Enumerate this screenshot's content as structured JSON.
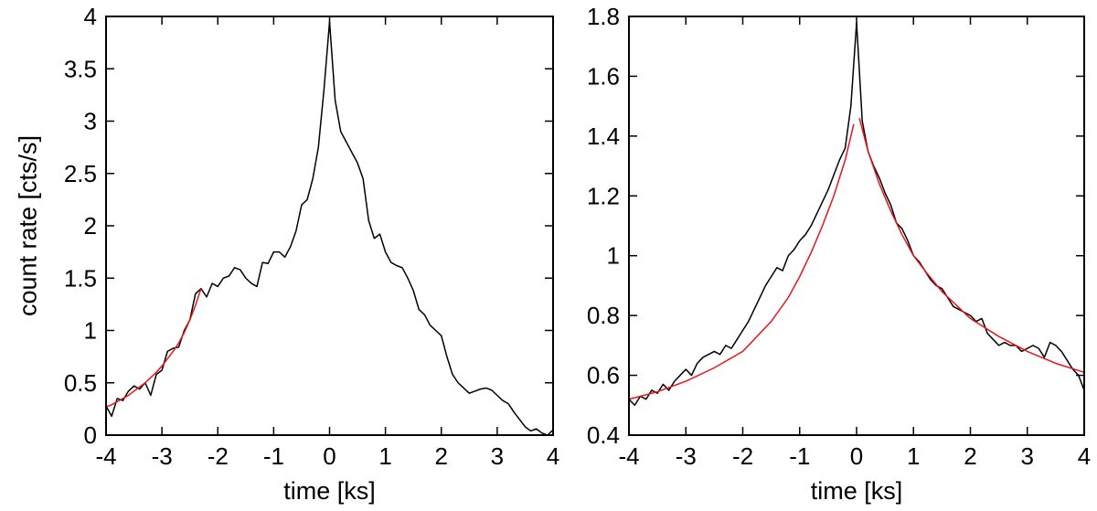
{
  "colors": {
    "data": "#000000",
    "fit": "#e8151b"
  },
  "chart_data": [
    {
      "type": "line",
      "xlabel": "time [ks]",
      "ylabel": "count rate [cts/s]",
      "xlim": [
        -4,
        4
      ],
      "ylim": [
        0,
        4
      ],
      "xticks": [
        "-4",
        "-3",
        "-2",
        "-1",
        "0",
        "1",
        "2",
        "3",
        "4"
      ],
      "yticks": [
        "0",
        "0.5",
        "1",
        "1.5",
        "2",
        "2.5",
        "3",
        "3.5",
        "4"
      ],
      "grid": false,
      "series": [
        {
          "role": "data",
          "x": [
            -4.0,
            -3.9,
            -3.8,
            -3.7,
            -3.6,
            -3.5,
            -3.4,
            -3.3,
            -3.2,
            -3.1,
            -3.0,
            -2.9,
            -2.8,
            -2.7,
            -2.6,
            -2.5,
            -2.4,
            -2.3,
            -2.2,
            -2.1,
            -2.0,
            -1.9,
            -1.8,
            -1.7,
            -1.6,
            -1.5,
            -1.4,
            -1.3,
            -1.2,
            -1.1,
            -1.0,
            -0.9,
            -0.8,
            -0.7,
            -0.6,
            -0.5,
            -0.4,
            -0.3,
            -0.2,
            -0.1,
            0.0,
            0.1,
            0.2,
            0.3,
            0.4,
            0.5,
            0.6,
            0.7,
            0.8,
            0.9,
            1.0,
            1.1,
            1.2,
            1.3,
            1.4,
            1.5,
            1.6,
            1.7,
            1.8,
            1.9,
            2.0,
            2.1,
            2.2,
            2.3,
            2.4,
            2.5,
            2.6,
            2.7,
            2.8,
            2.9,
            3.0,
            3.1,
            3.2,
            3.3,
            3.4,
            3.5,
            3.6,
            3.7,
            3.8,
            3.9,
            4.0
          ],
          "y": [
            0.28,
            0.18,
            0.35,
            0.33,
            0.42,
            0.47,
            0.44,
            0.5,
            0.38,
            0.58,
            0.62,
            0.8,
            0.83,
            0.84,
            1.0,
            1.1,
            1.35,
            1.4,
            1.32,
            1.45,
            1.42,
            1.5,
            1.52,
            1.6,
            1.58,
            1.5,
            1.45,
            1.42,
            1.65,
            1.64,
            1.75,
            1.75,
            1.7,
            1.8,
            1.95,
            2.2,
            2.25,
            2.45,
            2.75,
            3.3,
            3.95,
            3.2,
            2.9,
            2.8,
            2.7,
            2.6,
            2.45,
            2.05,
            1.88,
            1.92,
            1.75,
            1.65,
            1.62,
            1.6,
            1.5,
            1.38,
            1.2,
            1.15,
            1.05,
            1.0,
            0.95,
            0.75,
            0.58,
            0.5,
            0.45,
            0.4,
            0.42,
            0.44,
            0.45,
            0.43,
            0.38,
            0.33,
            0.3,
            0.22,
            0.15,
            0.08,
            0.04,
            0.06,
            0.02,
            0.0,
            0.05
          ]
        },
        {
          "role": "fit",
          "x": [
            -4.0,
            -3.9,
            -3.8,
            -3.7,
            -3.6,
            -3.5,
            -3.4,
            -3.3,
            -3.2,
            -3.1,
            -3.0,
            -2.9,
            -2.8,
            -2.7,
            -2.6,
            -2.5,
            -2.4,
            -2.3
          ],
          "y": [
            0.27,
            0.29,
            0.32,
            0.35,
            0.38,
            0.42,
            0.46,
            0.5,
            0.55,
            0.6,
            0.66,
            0.73,
            0.8,
            0.88,
            0.98,
            1.1,
            1.24,
            1.4
          ]
        }
      ]
    },
    {
      "type": "line",
      "xlabel": "time [ks]",
      "ylabel": "",
      "xlim": [
        -4,
        4
      ],
      "ylim": [
        0.4,
        1.8
      ],
      "xticks": [
        "-4",
        "-3",
        "-2",
        "-1",
        "0",
        "1",
        "2",
        "3",
        "4"
      ],
      "yticks": [
        "0.4",
        "0.6",
        "0.8",
        "1",
        "1.2",
        "1.4",
        "1.6",
        "1.8"
      ],
      "grid": false,
      "series": [
        {
          "role": "data",
          "x": [
            -4.0,
            -3.9,
            -3.8,
            -3.7,
            -3.6,
            -3.5,
            -3.4,
            -3.3,
            -3.2,
            -3.1,
            -3.0,
            -2.9,
            -2.8,
            -2.7,
            -2.6,
            -2.5,
            -2.4,
            -2.3,
            -2.2,
            -2.1,
            -2.0,
            -1.9,
            -1.8,
            -1.7,
            -1.6,
            -1.5,
            -1.4,
            -1.3,
            -1.2,
            -1.1,
            -1.0,
            -0.9,
            -0.8,
            -0.7,
            -0.6,
            -0.5,
            -0.4,
            -0.3,
            -0.2,
            -0.1,
            0.0,
            0.1,
            0.2,
            0.3,
            0.4,
            0.5,
            0.6,
            0.7,
            0.8,
            0.9,
            1.0,
            1.1,
            1.2,
            1.3,
            1.4,
            1.5,
            1.6,
            1.7,
            1.8,
            1.9,
            2.0,
            2.1,
            2.2,
            2.3,
            2.4,
            2.5,
            2.6,
            2.7,
            2.8,
            2.9,
            3.0,
            3.1,
            3.2,
            3.3,
            3.4,
            3.5,
            3.6,
            3.7,
            3.8,
            3.9,
            4.0
          ],
          "y": [
            0.52,
            0.5,
            0.53,
            0.52,
            0.55,
            0.54,
            0.57,
            0.55,
            0.58,
            0.6,
            0.62,
            0.6,
            0.64,
            0.66,
            0.67,
            0.68,
            0.67,
            0.7,
            0.69,
            0.72,
            0.75,
            0.78,
            0.82,
            0.86,
            0.9,
            0.93,
            0.96,
            0.95,
            1.0,
            1.02,
            1.05,
            1.07,
            1.1,
            1.14,
            1.18,
            1.22,
            1.27,
            1.32,
            1.36,
            1.5,
            1.78,
            1.45,
            1.35,
            1.3,
            1.26,
            1.21,
            1.17,
            1.11,
            1.09,
            1.05,
            1.0,
            0.98,
            0.95,
            0.92,
            0.9,
            0.89,
            0.86,
            0.83,
            0.82,
            0.81,
            0.8,
            0.78,
            0.79,
            0.74,
            0.72,
            0.7,
            0.71,
            0.7,
            0.7,
            0.68,
            0.69,
            0.7,
            0.69,
            0.66,
            0.71,
            0.7,
            0.68,
            0.65,
            0.62,
            0.6,
            0.55
          ]
        },
        {
          "role": "fit",
          "x": [
            -4.0,
            -3.5,
            -3.0,
            -2.5,
            -2.0,
            -1.5,
            -1.2,
            -1.0,
            -0.8,
            -0.6,
            -0.4,
            -0.2,
            -0.05
          ],
          "y": [
            0.52,
            0.545,
            0.58,
            0.625,
            0.68,
            0.78,
            0.86,
            0.93,
            1.01,
            1.1,
            1.2,
            1.32,
            1.44
          ]
        },
        {
          "role": "fit",
          "x": [
            0.05,
            0.2,
            0.4,
            0.6,
            0.8,
            1.0,
            1.2,
            1.5,
            2.0,
            2.5,
            3.0,
            3.5,
            4.0
          ],
          "y": [
            1.46,
            1.35,
            1.24,
            1.15,
            1.07,
            1.0,
            0.95,
            0.88,
            0.79,
            0.73,
            0.68,
            0.64,
            0.61
          ]
        }
      ]
    }
  ]
}
